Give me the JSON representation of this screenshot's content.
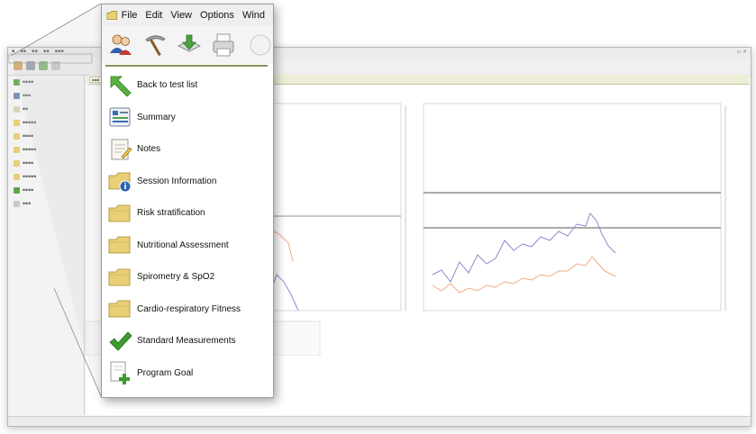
{
  "popup": {
    "menubar": [
      "File",
      "Edit",
      "View",
      "Options",
      "Wind"
    ],
    "menu_items": [
      {
        "label": "Back to test list",
        "icon": "green-back-arrow-icon"
      },
      {
        "label": "Summary",
        "icon": "summary-icon"
      },
      {
        "label": "Notes",
        "icon": "notes-icon"
      },
      {
        "label": "Session Information",
        "icon": "folder-info-icon"
      },
      {
        "label": "Risk stratification",
        "icon": "folder-icon"
      },
      {
        "label": "Nutritional Assessment",
        "icon": "folder-icon"
      },
      {
        "label": "Spirometry & SpO2",
        "icon": "folder-icon"
      },
      {
        "label": "Cardio-respiratory Fitness",
        "icon": "folder-icon"
      },
      {
        "label": "Standard Measurements",
        "icon": "checkmark-icon"
      },
      {
        "label": "Program Goal",
        "icon": "document-plus-icon"
      }
    ],
    "toolbar_icons": [
      "users-icon",
      "pickaxe-icon",
      "tray-download-icon",
      "printer-icon",
      "page-icon"
    ]
  },
  "colors": {
    "folder": "#e9cf76",
    "accent_green": "#3d9b2f",
    "toolbar_separator": "#8b8f5b",
    "chart_blue": "#8a8ccf",
    "chart_orange": "#f5a882"
  }
}
